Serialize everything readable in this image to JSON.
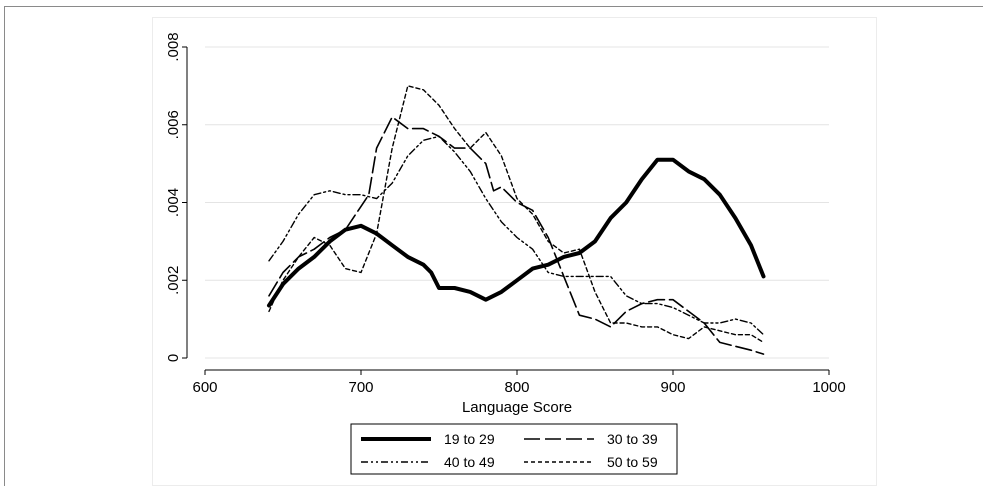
{
  "chart_data": {
    "type": "line",
    "title": "",
    "xlabel": "Language Score",
    "ylabel": "",
    "xlim": [
      600,
      1000
    ],
    "ylim": [
      0,
      0.008
    ],
    "x_ticks": [
      600,
      700,
      800,
      900,
      1000
    ],
    "x_tick_labels": [
      "600",
      "700",
      "800",
      "900",
      "1000"
    ],
    "y_ticks": [
      0,
      0.002,
      0.004,
      0.006,
      0.008
    ],
    "y_tick_labels": [
      "0",
      ".002",
      ".004",
      ".006",
      ".008"
    ],
    "y_tick_labels_rotated": true,
    "grid": "horizontal",
    "legend_position": "bottom",
    "legend_columns": 2,
    "series": [
      {
        "name": "19 to 29",
        "style": "solid-thick",
        "color": "#000000",
        "points": [
          [
            641,
            0.00135
          ],
          [
            650,
            0.0019
          ],
          [
            660,
            0.0023
          ],
          [
            670,
            0.0026
          ],
          [
            680,
            0.003
          ],
          [
            690,
            0.0033
          ],
          [
            700,
            0.0034
          ],
          [
            710,
            0.0032
          ],
          [
            720,
            0.0029
          ],
          [
            730,
            0.0026
          ],
          [
            740,
            0.0024
          ],
          [
            745,
            0.0022
          ],
          [
            750,
            0.0018
          ],
          [
            760,
            0.0018
          ],
          [
            770,
            0.0017
          ],
          [
            780,
            0.0015
          ],
          [
            790,
            0.0017
          ],
          [
            800,
            0.002
          ],
          [
            810,
            0.0023
          ],
          [
            820,
            0.0024
          ],
          [
            830,
            0.0026
          ],
          [
            840,
            0.0027
          ],
          [
            850,
            0.003
          ],
          [
            860,
            0.0036
          ],
          [
            870,
            0.004
          ],
          [
            880,
            0.0046
          ],
          [
            890,
            0.0051
          ],
          [
            900,
            0.0051
          ],
          [
            910,
            0.0048
          ],
          [
            920,
            0.0046
          ],
          [
            930,
            0.0042
          ],
          [
            940,
            0.0036
          ],
          [
            950,
            0.0029
          ],
          [
            958,
            0.0021
          ]
        ]
      },
      {
        "name": "30 to 39",
        "style": "long-dash",
        "color": "#000000",
        "points": [
          [
            641,
            0.0016
          ],
          [
            650,
            0.0022
          ],
          [
            660,
            0.0026
          ],
          [
            670,
            0.0028
          ],
          [
            680,
            0.0031
          ],
          [
            690,
            0.0033
          ],
          [
            700,
            0.0039
          ],
          [
            705,
            0.0042
          ],
          [
            710,
            0.0054
          ],
          [
            720,
            0.0062
          ],
          [
            730,
            0.0059
          ],
          [
            740,
            0.0059
          ],
          [
            750,
            0.0057
          ],
          [
            760,
            0.0054
          ],
          [
            770,
            0.0054
          ],
          [
            780,
            0.005
          ],
          [
            785,
            0.0043
          ],
          [
            790,
            0.0044
          ],
          [
            800,
            0.004
          ],
          [
            810,
            0.0038
          ],
          [
            820,
            0.0031
          ],
          [
            830,
            0.0021
          ],
          [
            840,
            0.0011
          ],
          [
            850,
            0.001
          ],
          [
            860,
            0.0008
          ],
          [
            870,
            0.0012
          ],
          [
            880,
            0.0014
          ],
          [
            890,
            0.0015
          ],
          [
            900,
            0.0015
          ],
          [
            910,
            0.0012
          ],
          [
            920,
            0.0009
          ],
          [
            930,
            0.0004
          ],
          [
            940,
            0.0003
          ],
          [
            950,
            0.0002
          ],
          [
            958,
            0.0001
          ]
        ]
      },
      {
        "name": "40 to 49",
        "style": "dash-dot-dot",
        "color": "#000000",
        "points": [
          [
            641,
            0.0025
          ],
          [
            650,
            0.003
          ],
          [
            660,
            0.0037
          ],
          [
            670,
            0.0042
          ],
          [
            680,
            0.0043
          ],
          [
            690,
            0.0042
          ],
          [
            700,
            0.0042
          ],
          [
            710,
            0.0041
          ],
          [
            720,
            0.0045
          ],
          [
            730,
            0.0052
          ],
          [
            740,
            0.0056
          ],
          [
            750,
            0.0057
          ],
          [
            760,
            0.0053
          ],
          [
            770,
            0.0048
          ],
          [
            780,
            0.0041
          ],
          [
            790,
            0.0035
          ],
          [
            800,
            0.0031
          ],
          [
            810,
            0.0028
          ],
          [
            820,
            0.0022
          ],
          [
            830,
            0.0021
          ],
          [
            840,
            0.0021
          ],
          [
            850,
            0.0021
          ],
          [
            860,
            0.0021
          ],
          [
            870,
            0.0016
          ],
          [
            880,
            0.0014
          ],
          [
            890,
            0.0014
          ],
          [
            900,
            0.0013
          ],
          [
            910,
            0.0011
          ],
          [
            920,
            0.0009
          ],
          [
            930,
            0.0009
          ],
          [
            940,
            0.001
          ],
          [
            950,
            0.0009
          ],
          [
            958,
            0.0006
          ]
        ]
      },
      {
        "name": "50 to 59",
        "style": "short-dash",
        "color": "#000000",
        "points": [
          [
            641,
            0.0012
          ],
          [
            650,
            0.002
          ],
          [
            660,
            0.0026
          ],
          [
            670,
            0.0031
          ],
          [
            680,
            0.0029
          ],
          [
            690,
            0.0023
          ],
          [
            700,
            0.0022
          ],
          [
            710,
            0.0032
          ],
          [
            720,
            0.0054
          ],
          [
            730,
            0.007
          ],
          [
            740,
            0.0069
          ],
          [
            750,
            0.0065
          ],
          [
            760,
            0.0059
          ],
          [
            770,
            0.0054
          ],
          [
            780,
            0.0058
          ],
          [
            790,
            0.0052
          ],
          [
            800,
            0.0041
          ],
          [
            810,
            0.0037
          ],
          [
            820,
            0.003
          ],
          [
            830,
            0.0027
          ],
          [
            840,
            0.0028
          ],
          [
            850,
            0.0017
          ],
          [
            860,
            0.0009
          ],
          [
            870,
            0.0009
          ],
          [
            880,
            0.0008
          ],
          [
            890,
            0.0008
          ],
          [
            900,
            0.0006
          ],
          [
            910,
            0.0005
          ],
          [
            920,
            0.0008
          ],
          [
            930,
            0.0007
          ],
          [
            940,
            0.0006
          ],
          [
            950,
            0.0006
          ],
          [
            958,
            0.0004
          ]
        ]
      }
    ]
  }
}
